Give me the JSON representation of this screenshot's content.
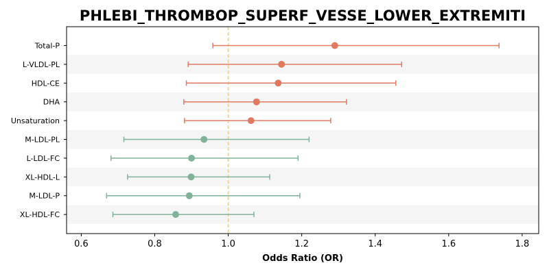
{
  "chart_data": {
    "type": "forest",
    "title": "PHLEBI_THROMBOP_SUPERF_VESSE_LOWER_EXTREMITI",
    "xlabel": "Odds Ratio (OR)",
    "ylabel": "",
    "xlim": [
      0.56,
      1.845
    ],
    "xticks": [
      0.6,
      0.8,
      1.0,
      1.2,
      1.4,
      1.6,
      1.8
    ],
    "xtick_labels": [
      "0.6",
      "0.8",
      "1.0",
      "1.2",
      "1.4",
      "1.6",
      "1.8"
    ],
    "reference_line": 1.0,
    "grid": false,
    "alternating_row_shading": true,
    "colors": {
      "positive": "#e07a5f",
      "negative": "#81b29a",
      "reference": "#f2cc8f",
      "row_shade": "#f5f5f5"
    },
    "rows": [
      {
        "label": "Total-P",
        "or": 1.29,
        "lower": 0.958,
        "upper": 1.737
      },
      {
        "label": "L-VLDL-PL",
        "or": 1.145,
        "lower": 0.891,
        "upper": 1.472
      },
      {
        "label": "HDL-CE",
        "or": 1.136,
        "lower": 0.886,
        "upper": 1.456
      },
      {
        "label": "DHA",
        "or": 1.077,
        "lower": 0.879,
        "upper": 1.322
      },
      {
        "label": "Unsaturation",
        "or": 1.062,
        "lower": 0.881,
        "upper": 1.279
      },
      {
        "label": "M-LDL-PL",
        "or": 0.934,
        "lower": 0.716,
        "upper": 1.22
      },
      {
        "label": "L-LDL-FC",
        "or": 0.9,
        "lower": 0.681,
        "upper": 1.19
      },
      {
        "label": "XL-HDL-L",
        "or": 0.899,
        "lower": 0.726,
        "upper": 1.113
      },
      {
        "label": "M-LDL-P",
        "or": 0.894,
        "lower": 0.669,
        "upper": 1.195
      },
      {
        "label": "XL-HDL-FC",
        "or": 0.857,
        "lower": 0.686,
        "upper": 1.07
      }
    ]
  }
}
